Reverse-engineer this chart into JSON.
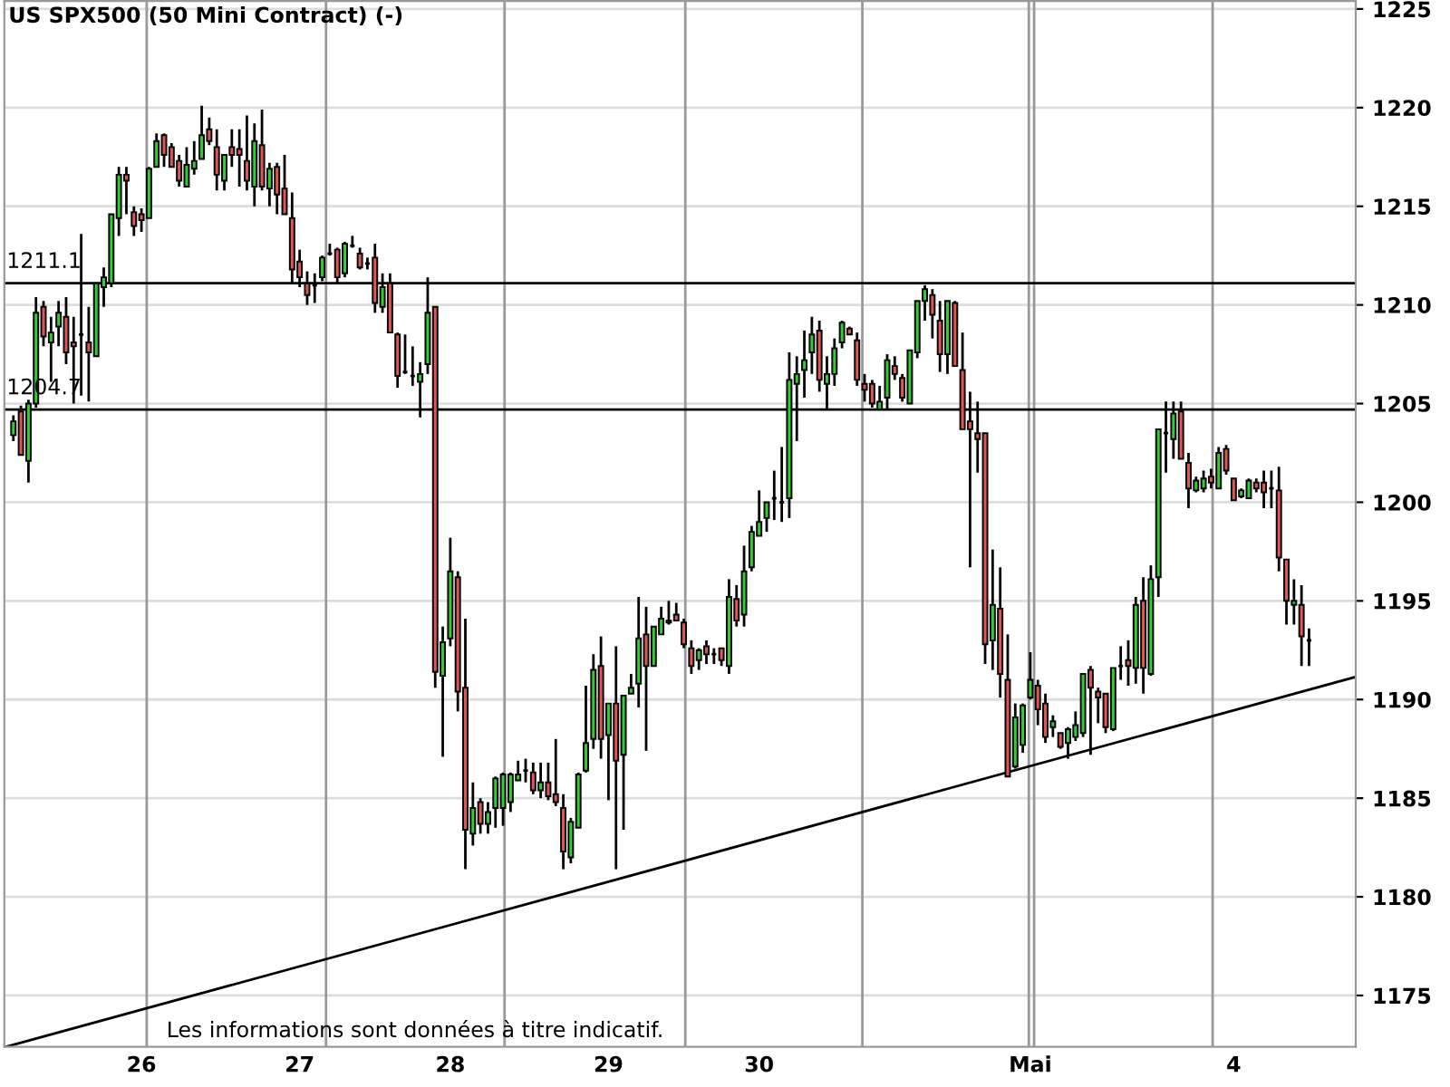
{
  "chart_data": {
    "type": "candlestick",
    "title": "US SPX500 (50 Mini Contract) (-)",
    "annotations": [
      "Les informations sont données à titre indicatif."
    ],
    "categories": [
      null,
      null,
      null,
      null,
      null,
      null,
      null,
      null,
      null,
      null,
      null,
      null,
      null,
      null,
      null,
      null,
      null,
      "26",
      null,
      null,
      null,
      null,
      null,
      null,
      null,
      null,
      null,
      null,
      null,
      null,
      null,
      null,
      null,
      null,
      null,
      null,
      null,
      null,
      "27",
      null,
      null,
      null,
      null,
      null,
      null,
      null,
      null,
      null,
      null,
      null,
      null,
      null,
      null,
      null,
      null,
      null,
      null,
      null,
      "28",
      null,
      null,
      null,
      null,
      null,
      null,
      null,
      null,
      null,
      null,
      null,
      null,
      null,
      null,
      null,
      null,
      null,
      null,
      null,
      null,
      "29",
      null,
      null,
      null,
      null,
      null,
      null,
      null,
      null,
      null,
      null,
      null,
      null,
      null,
      null,
      null,
      null,
      null,
      null,
      null,
      "30",
      null,
      null,
      null,
      null,
      null,
      null,
      null,
      null,
      null,
      null,
      null,
      null,
      null,
      null,
      null,
      null,
      null,
      null,
      null,
      null,
      null,
      null,
      null,
      null,
      null,
      null,
      null,
      null,
      null,
      null,
      null,
      null,
      null,
      null,
      null,
      "Mai",
      null,
      null,
      null,
      null,
      null,
      null,
      null,
      null,
      null,
      null,
      null,
      null,
      null,
      null,
      null,
      null,
      null,
      null,
      null,
      null,
      null,
      null,
      null,
      null,
      null,
      null,
      "4",
      null,
      null,
      null,
      null,
      null,
      null,
      null,
      null,
      null,
      null
    ],
    "ohlc": [
      [
        1203.4,
        1204.4,
        1203.1,
        1204.1
      ],
      [
        1204.6,
        1204.9,
        1202.4,
        1202.4
      ],
      [
        1202.1,
        1205.2,
        1201.0,
        1205.0
      ],
      [
        1205.0,
        1210.4,
        1204.8,
        1209.6
      ],
      [
        1209.9,
        1210.2,
        1207.9,
        1208.4
      ],
      [
        1208.1,
        1209.4,
        1206.1,
        1208.6
      ],
      [
        1208.9,
        1210.2,
        1207.9,
        1209.6
      ],
      [
        1209.4,
        1210.4,
        1207.0,
        1207.6
      ],
      [
        1208.1,
        1209.4,
        1205.0,
        1207.9
      ],
      [
        1208.5,
        1213.6,
        1205.4,
        1208.5
      ],
      [
        1208.1,
        1209.9,
        1205.1,
        1207.6
      ],
      [
        1207.4,
        1211.1,
        1207.4,
        1211.1
      ],
      [
        1210.9,
        1211.9,
        1209.9,
        1211.4
      ],
      [
        1211.1,
        1214.6,
        1210.9,
        1214.6
      ],
      [
        1214.4,
        1217.0,
        1213.5,
        1216.6
      ],
      [
        1216.6,
        1217.0,
        1214.6,
        1216.3
      ],
      [
        1214.7,
        1215.0,
        1213.5,
        1214.0
      ],
      [
        1214.6,
        1214.9,
        1213.7,
        1214.3
      ],
      [
        1214.4,
        1217.0,
        1214.4,
        1216.9
      ],
      [
        1217.0,
        1218.7,
        1217.0,
        1218.3
      ],
      [
        1218.6,
        1218.7,
        1217.0,
        1217.6
      ],
      [
        1218.0,
        1218.2,
        1217.0,
        1217.0
      ],
      [
        1217.3,
        1217.6,
        1216.0,
        1216.3
      ],
      [
        1216.0,
        1218.0,
        1216.0,
        1217.1
      ],
      [
        1216.9,
        1218.3,
        1216.6,
        1217.3
      ],
      [
        1217.4,
        1220.1,
        1217.4,
        1218.6
      ],
      [
        1218.9,
        1219.5,
        1218.1,
        1218.3
      ],
      [
        1218.0,
        1218.9,
        1215.8,
        1216.6
      ],
      [
        1216.3,
        1217.6,
        1215.8,
        1217.6
      ],
      [
        1218.0,
        1218.9,
        1217.0,
        1217.6
      ],
      [
        1217.9,
        1218.9,
        1216.0,
        1217.6
      ],
      [
        1217.3,
        1219.6,
        1215.8,
        1216.3
      ],
      [
        1216.0,
        1219.2,
        1215.0,
        1218.3
      ],
      [
        1218.1,
        1219.9,
        1215.8,
        1216.0
      ],
      [
        1215.9,
        1217.2,
        1215.0,
        1216.9
      ],
      [
        1217.0,
        1217.2,
        1214.6,
        1215.6
      ],
      [
        1215.9,
        1217.6,
        1214.6,
        1214.6
      ],
      [
        1214.4,
        1215.7,
        1211.1,
        1211.8
      ],
      [
        1212.2,
        1212.8,
        1210.9,
        1211.4
      ],
      [
        1211.1,
        1211.7,
        1210.0,
        1210.5
      ],
      [
        1211.0,
        1211.6,
        1210.1,
        1211.0
      ],
      [
        1211.4,
        1212.5,
        1211.2,
        1212.4
      ],
      [
        1212.6,
        1213.1,
        1212.5,
        1212.6
      ],
      [
        1212.8,
        1212.9,
        1211.1,
        1211.4
      ],
      [
        1211.6,
        1213.2,
        1211.4,
        1213.1
      ],
      [
        1213.0,
        1213.5,
        1212.9,
        1213.0
      ],
      [
        1212.6,
        1212.9,
        1211.8,
        1211.9
      ],
      [
        1212.1,
        1212.4,
        1211.8,
        1212.1
      ],
      [
        1212.4,
        1213.1,
        1209.6,
        1210.1
      ],
      [
        1209.9,
        1211.6,
        1209.6,
        1210.9
      ],
      [
        1211.1,
        1211.6,
        1208.6,
        1208.6
      ],
      [
        1208.5,
        1208.6,
        1205.8,
        1206.4
      ],
      [
        1206.6,
        1208.5,
        1206.5,
        1206.6
      ],
      [
        1206.4,
        1207.9,
        1205.9,
        1206.4
      ],
      [
        1206.1,
        1207.1,
        1204.3,
        1206.5
      ],
      [
        1207.0,
        1211.4,
        1206.5,
        1209.6
      ],
      [
        1209.9,
        1209.9,
        1190.6,
        1191.4
      ],
      [
        1191.2,
        1193.7,
        1187.1,
        1192.9
      ],
      [
        1193.1,
        1198.2,
        1192.7,
        1196.5
      ],
      [
        1196.2,
        1196.5,
        1189.4,
        1190.4
      ],
      [
        1190.6,
        1194.1,
        1181.4,
        1183.4
      ],
      [
        1183.2,
        1185.8,
        1182.6,
        1184.5
      ],
      [
        1184.8,
        1185.0,
        1183.2,
        1183.7
      ],
      [
        1183.7,
        1184.8,
        1183.2,
        1184.3
      ],
      [
        1184.5,
        1186.1,
        1183.5,
        1186.0
      ],
      [
        1184.5,
        1186.3,
        1183.6,
        1186.2
      ],
      [
        1184.8,
        1186.3,
        1184.3,
        1186.2
      ],
      [
        1185.9,
        1186.9,
        1185.9,
        1186.2
      ],
      [
        1186.4,
        1187.0,
        1185.8,
        1186.4
      ],
      [
        1186.3,
        1186.8,
        1185.2,
        1185.4
      ],
      [
        1185.4,
        1186.8,
        1185.0,
        1185.8
      ],
      [
        1185.8,
        1186.8,
        1184.9,
        1185.1
      ],
      [
        1185.2,
        1188.0,
        1184.6,
        1184.8
      ],
      [
        1184.5,
        1185.2,
        1181.4,
        1182.3
      ],
      [
        1182.0,
        1184.0,
        1181.7,
        1183.8
      ],
      [
        1183.5,
        1186.3,
        1183.5,
        1186.2
      ],
      [
        1186.4,
        1190.7,
        1186.3,
        1187.8
      ],
      [
        1188.0,
        1192.3,
        1187.5,
        1191.5
      ],
      [
        1191.7,
        1193.2,
        1187.0,
        1188.0
      ],
      [
        1188.2,
        1189.8,
        1184.9,
        1189.8
      ],
      [
        1189.8,
        1192.7,
        1181.4,
        1186.9
      ],
      [
        1187.2,
        1190.2,
        1183.4,
        1190.2
      ],
      [
        1190.3,
        1191.3,
        1190.3,
        1190.6
      ],
      [
        1190.8,
        1195.2,
        1189.6,
        1193.1
      ],
      [
        1193.3,
        1194.7,
        1187.4,
        1191.7
      ],
      [
        1191.7,
        1193.7,
        1191.7,
        1193.7
      ],
      [
        1193.3,
        1194.7,
        1193.3,
        1194.1
      ],
      [
        1193.9,
        1195.0,
        1193.8,
        1194.0
      ],
      [
        1194.3,
        1194.9,
        1194.0,
        1194.0
      ],
      [
        1193.9,
        1194.1,
        1192.6,
        1192.8
      ],
      [
        1192.6,
        1193.0,
        1191.3,
        1191.7
      ],
      [
        1192.0,
        1192.6,
        1191.5,
        1192.5
      ],
      [
        1192.7,
        1193.0,
        1191.8,
        1192.3
      ],
      [
        1192.3,
        1192.6,
        1191.8,
        1192.3
      ],
      [
        1192.6,
        1192.6,
        1191.7,
        1192.0
      ],
      [
        1191.7,
        1196.1,
        1191.3,
        1195.2
      ],
      [
        1195.1,
        1195.8,
        1193.7,
        1194.0
      ],
      [
        1194.3,
        1197.8,
        1193.7,
        1196.5
      ],
      [
        1196.7,
        1198.8,
        1196.5,
        1198.5
      ],
      [
        1198.3,
        1200.6,
        1198.3,
        1199.0
      ],
      [
        1199.2,
        1200.0,
        1198.5,
        1200.0
      ],
      [
        1200.2,
        1201.6,
        1199.1,
        1200.2
      ],
      [
        1200.0,
        1202.8,
        1199.0,
        1200.0
      ],
      [
        1200.2,
        1207.6,
        1199.2,
        1206.2
      ],
      [
        1206.0,
        1207.4,
        1203.1,
        1206.5
      ],
      [
        1206.7,
        1208.7,
        1205.3,
        1207.2
      ],
      [
        1207.6,
        1209.4,
        1206.5,
        1208.5
      ],
      [
        1208.7,
        1209.2,
        1205.6,
        1206.2
      ],
      [
        1206.0,
        1207.4,
        1204.7,
        1206.5
      ],
      [
        1206.5,
        1208.3,
        1205.9,
        1207.8
      ],
      [
        1208.1,
        1209.2,
        1207.8,
        1209.1
      ],
      [
        1208.8,
        1208.9,
        1208.5,
        1208.5
      ],
      [
        1208.2,
        1208.6,
        1205.9,
        1206.2
      ],
      [
        1206.0,
        1206.5,
        1205.1,
        1205.7
      ],
      [
        1206.0,
        1206.2,
        1204.8,
        1205.0
      ],
      [
        1204.7,
        1205.9,
        1204.7,
        1205.1
      ],
      [
        1205.3,
        1207.5,
        1204.7,
        1207.2
      ],
      [
        1206.9,
        1207.4,
        1206.2,
        1206.5
      ],
      [
        1206.3,
        1206.5,
        1205.1,
        1205.3
      ],
      [
        1205.0,
        1207.7,
        1205.0,
        1207.7
      ],
      [
        1207.6,
        1210.2,
        1207.3,
        1210.2
      ],
      [
        1210.2,
        1211.0,
        1209.2,
        1210.8
      ],
      [
        1210.5,
        1210.8,
        1208.3,
        1209.5
      ],
      [
        1209.2,
        1210.2,
        1206.6,
        1207.5
      ],
      [
        1207.5,
        1210.2,
        1206.5,
        1210.2
      ],
      [
        1210.1,
        1210.2,
        1206.9,
        1206.9
      ],
      [
        1206.7,
        1208.6,
        1203.7,
        1203.7
      ],
      [
        1204.1,
        1205.6,
        1196.7,
        1203.7
      ],
      [
        1203.5,
        1205.1,
        1201.5,
        1203.2
      ],
      [
        1203.5,
        1203.5,
        1191.8,
        1192.8
      ],
      [
        1193.0,
        1197.6,
        1191.5,
        1194.8
      ],
      [
        1194.6,
        1196.7,
        1190.1,
        1191.3
      ],
      [
        1191.0,
        1193.3,
        1186.1,
        1186.1
      ],
      [
        1186.6,
        1189.8,
        1186.5,
        1189.1
      ],
      [
        1187.7,
        1189.8,
        1187.3,
        1189.7
      ],
      [
        1190.1,
        1192.4,
        1190.0,
        1191.0
      ],
      [
        1190.7,
        1191.0,
        1188.7,
        1189.5
      ],
      [
        1189.8,
        1190.3,
        1187.8,
        1188.1
      ],
      [
        1188.6,
        1189.2,
        1188.1,
        1188.9
      ],
      [
        1188.3,
        1188.3,
        1187.5,
        1187.6
      ],
      [
        1187.8,
        1188.6,
        1187.0,
        1188.5
      ],
      [
        1188.1,
        1189.4,
        1187.9,
        1188.7
      ],
      [
        1188.3,
        1191.3,
        1188.1,
        1191.3
      ],
      [
        1191.5,
        1191.7,
        1187.2,
        1190.6
      ],
      [
        1190.4,
        1190.6,
        1188.8,
        1190.1
      ],
      [
        1190.3,
        1190.3,
        1188.3,
        1188.6
      ],
      [
        1188.5,
        1191.6,
        1188.4,
        1191.6
      ],
      [
        1191.7,
        1192.7,
        1191.0,
        1191.7
      ],
      [
        1192.0,
        1193.0,
        1190.7,
        1191.7
      ],
      [
        1191.6,
        1195.2,
        1190.8,
        1194.8
      ],
      [
        1195.0,
        1196.2,
        1190.3,
        1191.6
      ],
      [
        1191.3,
        1196.8,
        1191.2,
        1196.1
      ],
      [
        1196.2,
        1203.7,
        1195.2,
        1203.7
      ],
      [
        1203.5,
        1205.1,
        1201.5,
        1203.5
      ],
      [
        1203.2,
        1205.1,
        1202.2,
        1204.5
      ],
      [
        1204.6,
        1205.1,
        1202.2,
        1202.2
      ],
      [
        1202.0,
        1202.5,
        1199.7,
        1200.7
      ],
      [
        1200.6,
        1201.3,
        1200.5,
        1201.1
      ],
      [
        1200.7,
        1201.6,
        1200.5,
        1201.2
      ],
      [
        1201.3,
        1201.7,
        1200.7,
        1201.0
      ],
      [
        1200.7,
        1202.8,
        1200.7,
        1202.5
      ],
      [
        1202.7,
        1202.9,
        1201.4,
        1201.6
      ],
      [
        1201.2,
        1201.2,
        1200.1,
        1200.1
      ],
      [
        1200.3,
        1200.7,
        1200.2,
        1200.6
      ],
      [
        1200.2,
        1201.2,
        1200.2,
        1201.1
      ],
      [
        1201.0,
        1201.2,
        1200.5,
        1200.7
      ],
      [
        1201.0,
        1201.6,
        1199.7,
        1200.5
      ],
      [
        1200.7,
        1201.6,
        1199.7,
        1200.7
      ],
      [
        1200.6,
        1201.8,
        1196.5,
        1197.2
      ],
      [
        1197.1,
        1197.1,
        1193.8,
        1195.0
      ],
      [
        1194.8,
        1196.1,
        1193.8,
        1195.0
      ],
      [
        1194.8,
        1195.8,
        1191.7,
        1193.2
      ],
      [
        1193.0,
        1193.6,
        1191.7,
        1193.0
      ]
    ],
    "colors": [
      "#33cc33",
      "#e05555",
      "#33cc33",
      "#33cc33",
      "#e05555",
      "#33cc33",
      "#33cc33",
      "#e05555",
      "#e05555",
      "#000000",
      "#e05555",
      "#33cc33",
      "#33cc33",
      "#33cc33",
      "#33cc33",
      "#e05555",
      "#e05555",
      "#e05555",
      "#33cc33",
      "#33cc33",
      "#e05555",
      "#e05555",
      "#e05555",
      "#33cc33",
      "#33cc33",
      "#33cc33",
      "#e05555",
      "#e05555",
      "#33cc33",
      "#e05555",
      "#e05555",
      "#e05555",
      "#33cc33",
      "#e05555",
      "#33cc33",
      "#e05555",
      "#e05555",
      "#e05555",
      "#e05555",
      "#e05555",
      "#000000",
      "#33cc33",
      "#000000",
      "#e05555",
      "#33cc33",
      "#000000",
      "#e05555",
      "#000000",
      "#e05555",
      "#33cc33",
      "#e05555",
      "#e05555",
      "#000000",
      "#000000",
      "#33cc33",
      "#33cc33",
      "#e05555",
      "#33cc33",
      "#33cc33",
      "#e05555",
      "#e05555",
      "#33cc33",
      "#e05555",
      "#33cc33",
      "#33cc33",
      "#33cc33",
      "#33cc33",
      "#33cc33",
      "#000000",
      "#e05555",
      "#33cc33",
      "#e05555",
      "#e05555",
      "#e05555",
      "#33cc33",
      "#33cc33",
      "#33cc33",
      "#33cc33",
      "#e05555",
      "#33cc33",
      "#e05555",
      "#33cc33",
      "#33cc33",
      "#33cc33",
      "#e05555",
      "#33cc33",
      "#33cc33",
      "#33cc33",
      "#e05555",
      "#e05555",
      "#e05555",
      "#33cc33",
      "#e05555",
      "#000000",
      "#e05555",
      "#33cc33",
      "#e05555",
      "#33cc33",
      "#33cc33",
      "#33cc33",
      "#33cc33",
      "#000000",
      "#000000",
      "#33cc33",
      "#33cc33",
      "#33cc33",
      "#33cc33",
      "#e05555",
      "#33cc33",
      "#33cc33",
      "#33cc33",
      "#e05555",
      "#e05555",
      "#e05555",
      "#e05555",
      "#33cc33",
      "#33cc33",
      "#e05555",
      "#e05555",
      "#33cc33",
      "#33cc33",
      "#33cc33",
      "#e05555",
      "#e05555",
      "#33cc33",
      "#e05555",
      "#e05555",
      "#e05555",
      "#e05555",
      "#e05555",
      "#33cc33",
      "#e05555",
      "#e05555",
      "#33cc33",
      "#33cc33",
      "#33cc33",
      "#e05555",
      "#e05555",
      "#33cc33",
      "#e05555",
      "#33cc33",
      "#33cc33",
      "#33cc33",
      "#e05555",
      "#e05555",
      "#e05555",
      "#33cc33",
      "#000000",
      "#e05555",
      "#33cc33",
      "#e05555",
      "#33cc33",
      "#33cc33",
      "#000000",
      "#33cc33",
      "#e05555",
      "#e05555",
      "#33cc33",
      "#33cc33",
      "#e05555",
      "#33cc33",
      "#e05555",
      "#e05555",
      "#33cc33",
      "#33cc33",
      "#e05555",
      "#e05555",
      "#000000",
      "#e05555",
      "#e05555",
      "#33cc33",
      "#e05555",
      "#000000"
    ],
    "series": [
      {
        "type": "line",
        "color": "#000000",
        "values": [
          1172.5,
          null,
          null,
          null,
          null,
          null,
          null,
          null,
          null,
          null,
          null,
          null,
          null,
          null,
          null,
          null,
          null,
          null,
          null,
          null,
          null,
          null,
          null,
          null,
          null,
          null,
          null,
          null,
          null,
          null,
          null,
          null,
          null,
          null,
          null,
          null,
          null,
          null,
          null,
          null,
          null,
          null,
          null,
          null,
          null,
          null,
          null,
          null,
          null,
          null,
          null,
          null,
          null,
          null,
          null,
          null,
          null,
          null,
          null,
          null,
          null,
          null,
          null,
          null,
          null,
          null,
          null,
          null,
          null,
          null,
          null,
          null,
          null,
          null,
          null,
          null,
          null,
          null,
          null,
          null,
          null,
          null,
          null,
          null,
          null,
          null,
          null,
          null,
          null,
          null,
          null,
          null,
          null,
          null,
          null,
          null,
          null,
          null,
          null,
          null,
          null,
          null,
          null,
          null,
          null,
          null,
          null,
          null,
          null,
          null,
          null,
          null,
          null,
          null,
          null,
          null,
          null,
          null,
          null,
          null,
          null,
          null,
          null,
          null,
          null,
          null,
          null,
          null,
          null,
          null,
          null,
          null,
          null,
          null,
          null,
          null,
          null,
          null,
          null,
          null,
          null,
          null,
          null,
          null,
          null,
          null,
          null,
          null,
          null,
          null,
          null,
          null,
          null,
          null,
          null,
          null,
          null,
          null,
          null,
          null,
          null,
          null,
          null,
          null,
          null,
          null,
          null,
          null,
          null,
          null,
          null,
          null,
          1190.5
        ]
      }
    ],
    "ref_lines": [
      {
        "axis": "y",
        "value": 1211.1,
        "label": "1211.1",
        "color": "#000000"
      },
      {
        "axis": "y",
        "value": 1204.7,
        "label": "1204.7",
        "color": "#000000"
      }
    ],
    "ylim": [
      1172.4,
      1225.4
    ],
    "yticks": [
      1175,
      1180,
      1185,
      1190,
      1195,
      1200,
      1205,
      1210,
      1215,
      1220,
      1225
    ],
    "grid": "y"
  }
}
